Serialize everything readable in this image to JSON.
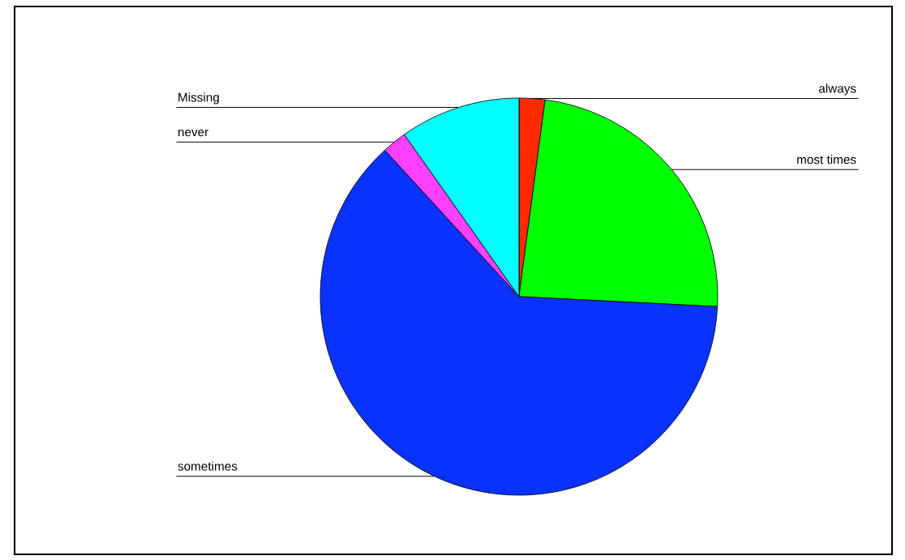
{
  "chart_data": {
    "type": "pie",
    "categories": [
      "always",
      "most times",
      "sometimes",
      "never",
      "Missing"
    ],
    "values": [
      2.1,
      23.7,
      62.4,
      2.0,
      9.8
    ],
    "colors": [
      "#ff2a00",
      "#00ff00",
      "#0a32ff",
      "#ff40ff",
      "#00ffff"
    ],
    "legend": false
  }
}
